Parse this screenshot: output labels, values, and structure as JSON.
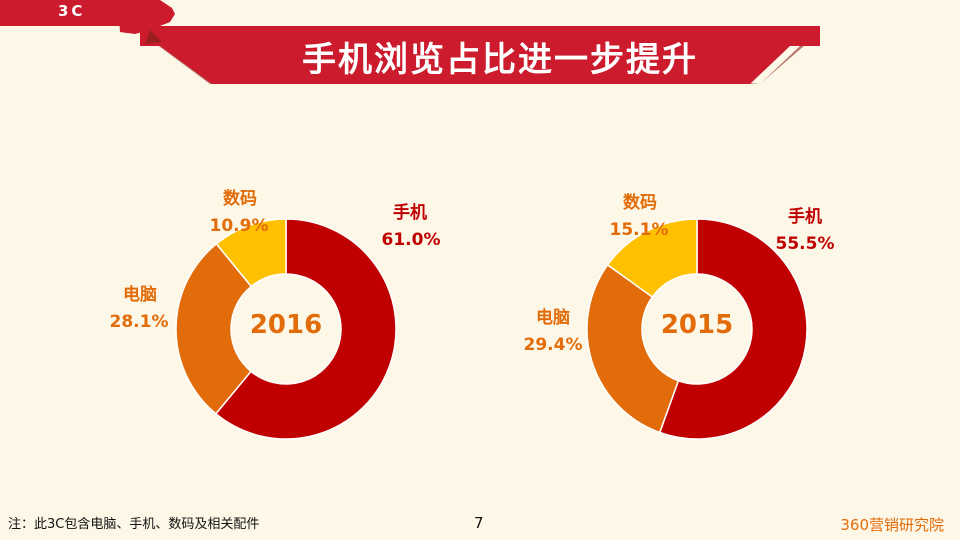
{
  "header": {
    "tag": "3C",
    "title": "手机浏览占比进一步提升"
  },
  "chart_data": [
    {
      "type": "pie",
      "donut": true,
      "center_label": "2016",
      "categories": [
        "手机",
        "电脑",
        "数码"
      ],
      "values": [
        61.0,
        28.1,
        10.9
      ],
      "labels": [
        "61.0%",
        "28.1%",
        "10.9%"
      ],
      "colors": [
        "#c00000",
        "#e36c0a",
        "#ffc000"
      ]
    },
    {
      "type": "pie",
      "donut": true,
      "center_label": "2015",
      "categories": [
        "手机",
        "电脑",
        "数码"
      ],
      "values": [
        55.5,
        29.4,
        15.1
      ],
      "labels": [
        "55.5%",
        "29.4%",
        "15.1%"
      ],
      "colors": [
        "#c00000",
        "#e36c0a",
        "#ffc000"
      ]
    }
  ],
  "footer": {
    "note": "注：此3C包含电脑、手机、数码及相关配件",
    "page": "7",
    "brand": "360营销研究院"
  }
}
